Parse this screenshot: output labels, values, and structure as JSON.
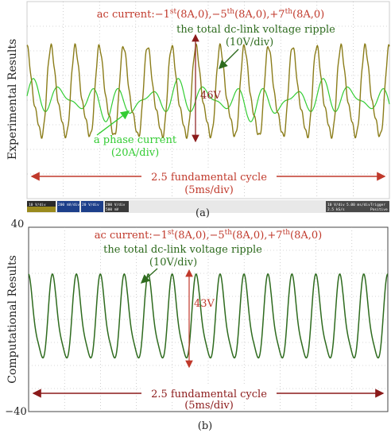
{
  "colors": {
    "red": "#c0392b",
    "dark_red": "#8b1a1a",
    "olive": "#8b7d1a",
    "green_bright": "#33cc33",
    "green_dark": "#2e6b1e",
    "grid": "#b0b0b0"
  },
  "panel_a": {
    "ylabel": "Experimental  Results",
    "title": "ac current:−1st(8A,0),−5th(8A,0),+7th(8A,0)",
    "voltage_note": "the total dc-link voltage ripple",
    "voltage_scale": "(10V/div)",
    "current_note": "a phase current",
    "current_scale": "(20A/div)",
    "span_label": "46V",
    "cycle_label": "2.5 fundamental cycle",
    "cycle_scale": "(5ms/div)",
    "caption": "(a)",
    "scope_left": [
      "10 V/div",
      "200 mV/div",
      "20 V/div",
      "200 V/div",
      "500 mV"
    ],
    "scope_right": [
      "10 V/div",
      "5.00 ms/div",
      "Trigger",
      "2.5 kS/s",
      "Positive"
    ]
  },
  "panel_b": {
    "ylabel": "Computational  Results",
    "title": "ac current:−1st(8A,0),−5th(8A,0),+7th(8A,0)",
    "voltage_note": "the total dc-link voltage ripple",
    "voltage_scale": "(10V/div)",
    "span_label": "43V",
    "cycle_label": "2.5 fundamental cycle",
    "cycle_scale": "(5ms/div)",
    "caption": "(b)",
    "ytick_top": "40",
    "ytick_bottom": "−40"
  },
  "chart_data": [
    {
      "type": "line",
      "title": "ac current:−1st(8A,0),−5th(8A,0),+7th(8A,0)",
      "ylabel": "Experimental Results",
      "xlabel": "",
      "x_unit": "ms",
      "xlim": [
        0,
        50
      ],
      "series": [
        {
          "name": "the total dc-link voltage ripple",
          "scale": "10V/div",
          "fundamental_cycles": 2.5,
          "harmonic_6": 1.0,
          "harmonic_12": 0.25,
          "peak_to_peak_V": 46
        },
        {
          "name": "a phase current",
          "scale": "20A/div",
          "fundamental_cycles": 2.5,
          "harmonic_5": 0.6,
          "harmonic_7": 0.4
        }
      ]
    },
    {
      "type": "line",
      "title": "ac current:−1st(8A,0),−5th(8A,0),+7th(8A,0)",
      "ylabel": "Computational Results",
      "xlabel": "",
      "x_unit": "ms",
      "xlim": [
        0,
        50
      ],
      "ylim": [
        -40,
        40
      ],
      "series": [
        {
          "name": "the total dc-link voltage ripple",
          "scale": "10V/div",
          "fundamental_cycles": 2.5,
          "harmonic_6": 1.0,
          "harmonic_12": 0.22,
          "peak_to_peak_V": 43
        }
      ]
    }
  ]
}
